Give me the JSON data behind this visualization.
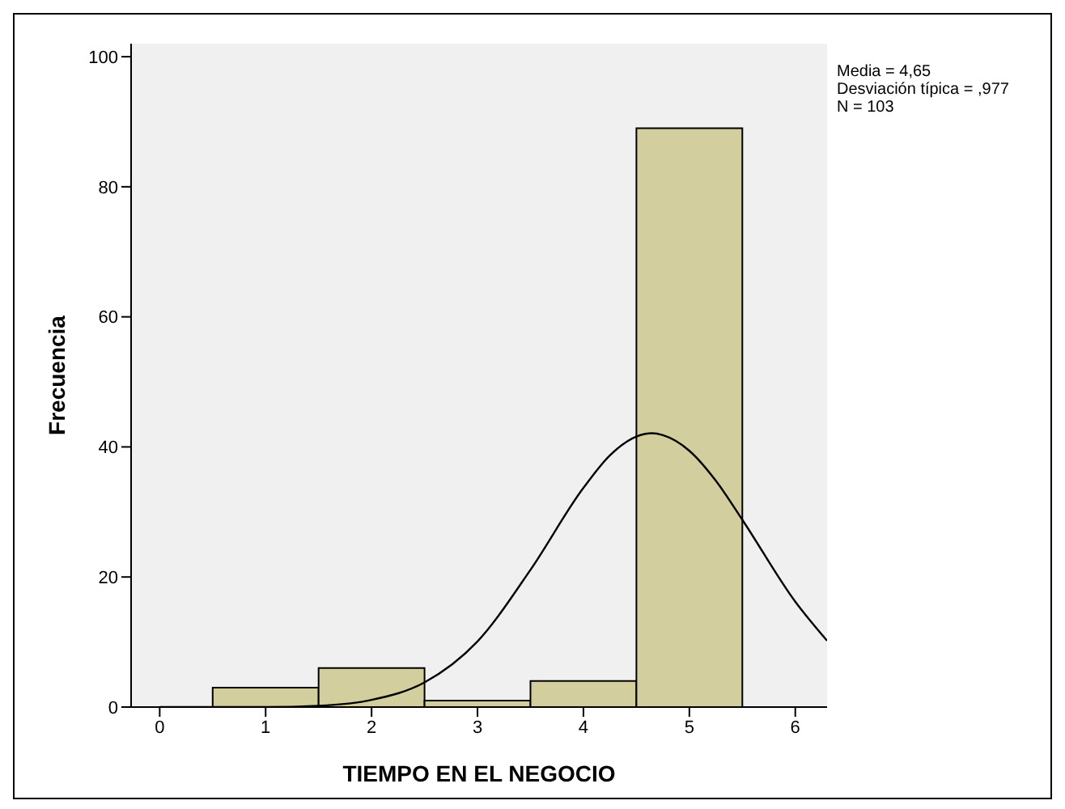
{
  "chart_data": {
    "type": "histogram",
    "xlabel": "TIEMPO EN EL NEGOCIO",
    "ylabel": "Frecuencia",
    "annotations": [
      "Media = 4,65",
      "Desviación típica = ,977",
      "N = 103"
    ],
    "bins": [
      0.5,
      1.5,
      2.5,
      3.5,
      4.5,
      5.5
    ],
    "series": [
      {
        "color": "#d3ce9d",
        "values": [
          3,
          6,
          1,
          4,
          89
        ]
      },
      {
        "type": "line",
        "color": "#000000",
        "x": [
          0,
          1,
          1.5,
          2,
          2.5,
          3,
          3.5,
          4,
          4.25,
          4.5,
          4.65,
          4.75,
          5,
          5.25,
          5.5,
          6,
          6.3
        ],
        "values": [
          0,
          0,
          0.2,
          1.1,
          3.8,
          10.1,
          21.1,
          33.7,
          38.7,
          41.6,
          42.1,
          41.8,
          39.4,
          34.8,
          28.8,
          16.2,
          10.2
        ]
      }
    ],
    "xlim": [
      -0.27,
      6.3
    ],
    "xticks": [
      0,
      1,
      2,
      3,
      4,
      5,
      6
    ],
    "ylim": [
      0,
      102
    ],
    "yticks": [
      0,
      20,
      40,
      60,
      80,
      100
    ],
    "grid": false,
    "marker": "none"
  }
}
